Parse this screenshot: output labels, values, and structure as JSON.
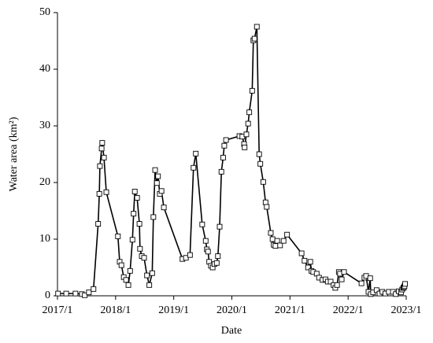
{
  "chart_data": {
    "type": "line",
    "xlabel": "Date",
    "ylabel": "Water area (km²)",
    "color": "#000000",
    "marker_fill": "#ffffff",
    "xlim": [
      2017,
      2023
    ],
    "xticks": [
      {
        "value": 2017,
        "label": "2017/1"
      },
      {
        "value": 2018,
        "label": "2018/1"
      },
      {
        "value": 2019,
        "label": "2019/1"
      },
      {
        "value": 2020,
        "label": "2020/1"
      },
      {
        "value": 2021,
        "label": "2021/1"
      },
      {
        "value": 2022,
        "label": "2022/1"
      },
      {
        "value": 2023,
        "label": "2023/1"
      }
    ],
    "ylim": [
      0,
      50
    ],
    "yticks": [
      0,
      10,
      20,
      30,
      40,
      50
    ],
    "x": [
      2017.01,
      2017.15,
      2017.31,
      2017.42,
      2017.47,
      2017.54,
      2017.62,
      2017.7,
      2017.72,
      2017.73,
      2017.76,
      2017.77,
      2017.8,
      2017.84,
      2018.04,
      2018.07,
      2018.1,
      2018.14,
      2018.18,
      2018.22,
      2018.25,
      2018.29,
      2018.31,
      2018.33,
      2018.37,
      2018.41,
      2018.42,
      2018.45,
      2018.49,
      2018.54,
      2018.58,
      2018.63,
      2018.65,
      2018.68,
      2018.71,
      2018.73,
      2018.76,
      2018.79,
      2018.83,
      2019.15,
      2019.21,
      2019.28,
      2019.34,
      2019.38,
      2019.49,
      2019.55,
      2019.57,
      2019.59,
      2019.61,
      2019.64,
      2019.67,
      2019.7,
      2019.74,
      2019.76,
      2019.79,
      2019.82,
      2019.85,
      2019.87,
      2019.9,
      2020.13,
      2020.18,
      2020.21,
      2020.22,
      2020.25,
      2020.28,
      2020.3,
      2020.35,
      2020.37,
      2020.39,
      2020.43,
      2020.47,
      2020.49,
      2020.54,
      2020.58,
      2020.6,
      2020.67,
      2020.7,
      2020.72,
      2020.75,
      2020.78,
      2020.83,
      2020.89,
      2020.95,
      2021.2,
      2021.25,
      2021.31,
      2021.35,
      2021.37,
      2021.4,
      2021.46,
      2021.5,
      2021.56,
      2021.61,
      2021.65,
      2021.7,
      2021.75,
      2021.78,
      2021.81,
      2021.84,
      2021.86,
      2021.89,
      2021.93,
      2022.23,
      2022.28,
      2022.31,
      2022.35,
      2022.38,
      2022.39,
      2022.43,
      2022.49,
      2022.54,
      2022.59,
      2022.64,
      2022.7,
      2022.77,
      2022.82,
      2022.87,
      2022.91,
      2022.93,
      2022.95,
      2022.96,
      2022.97,
      2022.98
    ],
    "values": [
      0.4,
      0.4,
      0.4,
      0.3,
      0.1,
      0.6,
      1.2,
      12.7,
      18,
      22.9,
      26,
      27,
      24.4,
      18.3,
      10.5,
      6,
      5.4,
      3.3,
      2.8,
      1.9,
      4.4,
      9.9,
      14.5,
      18.4,
      17.3,
      12.7,
      8.3,
      7,
      6.7,
      3.6,
      1.9,
      4,
      13.9,
      22.2,
      19.9,
      21.1,
      18,
      18.5,
      15.6,
      6.5,
      6.7,
      7.2,
      22.6,
      25.1,
      12.6,
      9.7,
      8.2,
      7.8,
      6,
      5.3,
      5,
      5.6,
      5.8,
      7,
      12.2,
      21.9,
      24.4,
      26.5,
      27.5,
      28.2,
      28.1,
      26.8,
      26.2,
      28.5,
      30.4,
      32.4,
      36.2,
      45.1,
      45.4,
      47.5,
      25,
      23.3,
      20.1,
      16.5,
      15.7,
      11.1,
      10,
      9,
      8.8,
      9.7,
      8.9,
      9.7,
      10.8,
      7.5,
      6.2,
      5,
      6,
      4.4,
      4.2,
      3.9,
      3.2,
      2.8,
      2.9,
      2.5,
      2.5,
      1.9,
      1.4,
      1.9,
      4.2,
      3.9,
      2.9,
      4.2,
      2.2,
      3.2,
      3.5,
      0.7,
      3.1,
      0.3,
      0.6,
      1,
      0.4,
      0.7,
      0.4,
      0.7,
      0.7,
      0.3,
      0.8,
      0.6,
      1.1,
      1.4,
      1.5,
      1.7,
      2.1
    ]
  }
}
